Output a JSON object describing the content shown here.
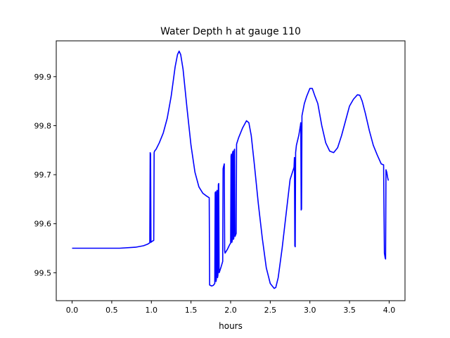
{
  "chart_data": {
    "type": "line",
    "title": "Water Depth h at gauge 110",
    "xlabel": "hours",
    "ylabel": "",
    "xlim": [
      -0.2,
      4.2
    ],
    "ylim": [
      99.443,
      99.973
    ],
    "xticks": [
      0.0,
      0.5,
      1.0,
      1.5,
      2.0,
      2.5,
      3.0,
      3.5,
      4.0
    ],
    "xtick_labels": [
      "0.0",
      "0.5",
      "1.0",
      "1.5",
      "2.0",
      "2.5",
      "3.0",
      "3.5",
      "4.0"
    ],
    "yticks": [
      99.5,
      99.6,
      99.7,
      99.8,
      99.9
    ],
    "ytick_labels": [
      "99.5",
      "99.6",
      "99.7",
      "99.8",
      "99.9"
    ],
    "grid": false,
    "series": [
      {
        "color": "#0000ff",
        "x": [
          0.0,
          0.3,
          0.6,
          0.8,
          0.9,
          0.95,
          0.98,
          0.985,
          0.99,
          0.995,
          1.0,
          1.03,
          1.035,
          1.04,
          1.06,
          1.1,
          1.15,
          1.2,
          1.25,
          1.3,
          1.33,
          1.35,
          1.37,
          1.4,
          1.45,
          1.5,
          1.55,
          1.6,
          1.65,
          1.7,
          1.73,
          1.735,
          1.76,
          1.78,
          1.8,
          1.805,
          1.81,
          1.815,
          1.82,
          1.825,
          1.83,
          1.835,
          1.84,
          1.845,
          1.85,
          1.855,
          1.86,
          1.88,
          1.9,
          1.905,
          1.91,
          1.92,
          1.925,
          1.93,
          1.96,
          1.99,
          2.0,
          2.005,
          2.01,
          2.015,
          2.02,
          2.025,
          2.03,
          2.035,
          2.04,
          2.045,
          2.05,
          2.055,
          2.06,
          2.07,
          2.075,
          2.08,
          2.1,
          2.15,
          2.2,
          2.23,
          2.26,
          2.3,
          2.35,
          2.4,
          2.45,
          2.5,
          2.55,
          2.57,
          2.6,
          2.65,
          2.7,
          2.75,
          2.8,
          2.805,
          2.81,
          2.815,
          2.82,
          2.83,
          2.86,
          2.88,
          2.885,
          2.89,
          2.895,
          2.9,
          2.93,
          2.96,
          3.0,
          3.03,
          3.06,
          3.1,
          3.15,
          3.2,
          3.25,
          3.3,
          3.35,
          3.4,
          3.45,
          3.5,
          3.55,
          3.6,
          3.63,
          3.66,
          3.7,
          3.75,
          3.8,
          3.85,
          3.9,
          3.93,
          3.94,
          3.945,
          3.95,
          3.955,
          3.96,
          3.97,
          3.98,
          3.99
        ],
        "y": [
          99.55,
          99.55,
          99.55,
          99.552,
          99.555,
          99.558,
          99.561,
          99.745,
          99.742,
          99.562,
          99.563,
          99.566,
          99.745,
          99.748,
          99.752,
          99.765,
          99.785,
          99.815,
          99.86,
          99.92,
          99.945,
          99.952,
          99.945,
          99.915,
          99.835,
          99.76,
          99.705,
          99.675,
          99.662,
          99.656,
          99.653,
          99.475,
          99.473,
          99.474,
          99.478,
          99.663,
          99.665,
          99.482,
          99.486,
          99.666,
          99.668,
          99.49,
          99.495,
          99.68,
          99.682,
          99.5,
          99.502,
          99.512,
          99.523,
          99.712,
          99.716,
          99.722,
          99.545,
          99.54,
          99.548,
          99.558,
          99.56,
          99.738,
          99.742,
          99.562,
          99.565,
          99.745,
          99.748,
          99.568,
          99.57,
          99.75,
          99.752,
          99.574,
          99.576,
          99.58,
          99.762,
          99.765,
          99.775,
          99.795,
          99.81,
          99.806,
          99.78,
          99.72,
          99.64,
          99.57,
          99.51,
          99.478,
          99.468,
          99.47,
          99.49,
          99.55,
          99.62,
          99.69,
          99.715,
          99.735,
          99.555,
          99.553,
          99.745,
          99.76,
          99.78,
          99.8,
          99.806,
          99.628,
          99.63,
          99.82,
          99.845,
          99.86,
          99.876,
          99.876,
          99.862,
          99.845,
          99.8,
          99.765,
          99.748,
          99.745,
          99.755,
          99.78,
          99.81,
          99.84,
          99.854,
          99.863,
          99.862,
          99.85,
          99.825,
          99.79,
          99.76,
          99.74,
          99.722,
          99.72,
          99.54,
          99.535,
          99.53,
          99.528,
          99.71,
          99.705,
          99.695,
          99.688
        ]
      }
    ]
  }
}
